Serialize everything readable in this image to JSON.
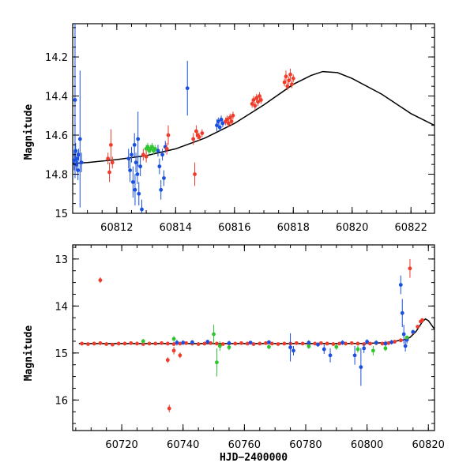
{
  "chart_data": [
    {
      "type": "scatter",
      "title": "",
      "xlabel": "",
      "ylabel": "Magnitude",
      "xlim": [
        60810.5,
        60822.8
      ],
      "ylim": [
        15.0,
        14.03
      ],
      "y_inverted": true,
      "x_ticks": [
        60812,
        60814,
        60816,
        60818,
        60820,
        60822
      ],
      "y_ticks": [
        14.2,
        14.4,
        14.6,
        14.8,
        15
      ],
      "colors": {
        "blue": "#1a4fe0",
        "red": "#f03a2a",
        "green": "#2ec52e",
        "model": "#000000"
      },
      "model_curve": {
        "name": "",
        "points": [
          [
            60810.5,
            14.745
          ],
          [
            60811,
            14.74
          ],
          [
            60812,
            14.725
          ],
          [
            60813,
            14.705
          ],
          [
            60814,
            14.67
          ],
          [
            60815,
            14.615
          ],
          [
            60816,
            14.54
          ],
          [
            60817,
            14.445
          ],
          [
            60818,
            14.34
          ],
          [
            60818.6,
            14.295
          ],
          [
            60819,
            14.275
          ],
          [
            60819.5,
            14.28
          ],
          [
            60820,
            14.31
          ],
          [
            60821,
            14.39
          ],
          [
            60822,
            14.49
          ],
          [
            60822.8,
            14.55
          ]
        ]
      },
      "series": [
        {
          "color": "blue",
          "points": [
            [
              60810.55,
              14.73,
              0.05
            ],
            [
              60810.6,
              14.68,
              0.04
            ],
            [
              60810.62,
              14.75,
              0.03
            ],
            [
              60810.65,
              14.72,
              0.04
            ],
            [
              60810.68,
              14.78,
              0.05
            ],
            [
              60810.7,
              14.7,
              0.03
            ],
            [
              60810.75,
              14.62,
              0.35
            ],
            [
              60810.58,
              14.42,
              0.4
            ],
            [
              60810.8,
              14.74,
              0.05
            ],
            [
              60812.4,
              14.72,
              0.05
            ],
            [
              60812.45,
              14.78,
              0.06
            ],
            [
              60812.5,
              14.7,
              0.04
            ],
            [
              60812.55,
              14.84,
              0.08
            ],
            [
              60812.6,
              14.65,
              0.06
            ],
            [
              60812.62,
              14.88,
              0.08
            ],
            [
              60812.65,
              14.74,
              0.05
            ],
            [
              60812.7,
              14.8,
              0.05
            ],
            [
              60812.72,
              14.62,
              0.14
            ],
            [
              60812.75,
              14.9,
              0.06
            ],
            [
              60812.8,
              14.76,
              0.05
            ],
            [
              60812.85,
              14.98,
              0.05
            ],
            [
              60813.4,
              14.68,
              0.03
            ],
            [
              60813.45,
              14.76,
              0.04
            ],
            [
              60813.5,
              14.88,
              0.05
            ],
            [
              60813.55,
              14.7,
              0.03
            ],
            [
              60813.6,
              14.82,
              0.04
            ],
            [
              60813.65,
              14.66,
              0.03
            ],
            [
              60814.4,
              14.36,
              0.14
            ],
            [
              60815.4,
              14.55,
              0.03
            ],
            [
              60815.45,
              14.53,
              0.02
            ],
            [
              60815.5,
              14.56,
              0.02
            ],
            [
              60815.55,
              14.52,
              0.02
            ],
            [
              60815.6,
              14.54,
              0.02
            ]
          ]
        },
        {
          "color": "green",
          "points": [
            [
              60813.0,
              14.67,
              0.02
            ],
            [
              60813.05,
              14.66,
              0.02
            ],
            [
              60813.1,
              14.68,
              0.02
            ],
            [
              60813.15,
              14.67,
              0.02
            ],
            [
              60813.2,
              14.66,
              0.02
            ],
            [
              60813.25,
              14.68,
              0.02
            ],
            [
              60813.3,
              14.67,
              0.02
            ]
          ]
        },
        {
          "color": "red",
          "points": [
            [
              60811.7,
              14.72,
              0.03
            ],
            [
              60811.75,
              14.79,
              0.05
            ],
            [
              60811.8,
              14.65,
              0.08
            ],
            [
              60811.85,
              14.74,
              0.03
            ],
            [
              60812.9,
              14.7,
              0.03
            ],
            [
              60813.0,
              14.71,
              0.03
            ],
            [
              60813.7,
              14.67,
              0.03
            ],
            [
              60813.75,
              14.6,
              0.05
            ],
            [
              60814.6,
              14.62,
              0.03
            ],
            [
              60814.65,
              14.8,
              0.06
            ],
            [
              60814.7,
              14.58,
              0.03
            ],
            [
              60814.75,
              14.6,
              0.02
            ],
            [
              60814.8,
              14.61,
              0.02
            ],
            [
              60814.9,
              14.59,
              0.02
            ],
            [
              60815.7,
              14.53,
              0.02
            ],
            [
              60815.75,
              14.52,
              0.02
            ],
            [
              60815.8,
              14.54,
              0.02
            ],
            [
              60815.85,
              14.51,
              0.02
            ],
            [
              60815.9,
              14.53,
              0.02
            ],
            [
              60815.95,
              14.5,
              0.02
            ],
            [
              60816.6,
              14.44,
              0.02
            ],
            [
              60816.65,
              14.42,
              0.02
            ],
            [
              60816.7,
              14.45,
              0.02
            ],
            [
              60816.75,
              14.41,
              0.02
            ],
            [
              60816.8,
              14.43,
              0.02
            ],
            [
              60816.85,
              14.4,
              0.02
            ],
            [
              60816.9,
              14.42,
              0.02
            ],
            [
              60817.7,
              14.33,
              0.02
            ],
            [
              60817.75,
              14.3,
              0.03
            ],
            [
              60817.8,
              14.35,
              0.02
            ],
            [
              60817.85,
              14.32,
              0.02
            ],
            [
              60817.9,
              14.29,
              0.03
            ],
            [
              60817.95,
              14.34,
              0.02
            ],
            [
              60818.0,
              14.31,
              0.02
            ]
          ]
        }
      ]
    },
    {
      "type": "scatter",
      "title": "",
      "xlabel": "HJD−2400000",
      "ylabel": "Magnitude",
      "xlim": [
        60704,
        60822
      ],
      "ylim": [
        16.65,
        12.7
      ],
      "y_inverted": true,
      "x_ticks": [
        60720,
        60740,
        60760,
        60780,
        60800,
        60820
      ],
      "y_ticks": [
        13,
        14,
        15,
        16
      ],
      "colors": {
        "blue": "#1a4fe0",
        "red": "#f03a2a",
        "green": "#2ec52e",
        "model": "#000000"
      },
      "model_curve": {
        "name": "",
        "points": [
          [
            60706,
            14.8
          ],
          [
            60790,
            14.8
          ],
          [
            60800,
            14.795
          ],
          [
            60806,
            14.78
          ],
          [
            60810,
            14.74
          ],
          [
            60812,
            14.72
          ],
          [
            60814,
            14.67
          ],
          [
            60816,
            14.54
          ],
          [
            60818,
            14.34
          ],
          [
            60819,
            14.275
          ],
          [
            60820,
            14.31
          ],
          [
            60822,
            14.49
          ]
        ]
      },
      "series": [
        {
          "color": "red",
          "points": [
            [
              60707,
              14.8,
              0.03
            ],
            [
              60709,
              14.81,
              0.03
            ],
            [
              60711,
              14.8,
              0.03
            ],
            [
              60713,
              14.79,
              0.04
            ],
            [
              60715,
              14.81,
              0.03
            ],
            [
              60717,
              14.82,
              0.03
            ],
            [
              60719,
              14.8,
              0.03
            ],
            [
              60721,
              14.8,
              0.03
            ],
            [
              60723,
              14.79,
              0.03
            ],
            [
              60725,
              14.8,
              0.03
            ],
            [
              60727,
              14.81,
              0.03
            ],
            [
              60729,
              14.8,
              0.03
            ],
            [
              60731,
              14.8,
              0.03
            ],
            [
              60733,
              14.79,
              0.03
            ],
            [
              60735,
              14.8,
              0.03
            ],
            [
              60737,
              14.81,
              0.03
            ],
            [
              60739,
              14.8,
              0.03
            ],
            [
              60741,
              14.79,
              0.03
            ],
            [
              60743,
              14.8,
              0.03
            ],
            [
              60745,
              14.81,
              0.03
            ],
            [
              60747,
              14.8,
              0.03
            ],
            [
              60749,
              14.79,
              0.03
            ],
            [
              60751,
              14.8,
              0.03
            ],
            [
              60753,
              14.81,
              0.03
            ],
            [
              60755,
              14.8,
              0.03
            ],
            [
              60757,
              14.8,
              0.03
            ],
            [
              60759,
              14.79,
              0.03
            ],
            [
              60761,
              14.8,
              0.03
            ],
            [
              60763,
              14.81,
              0.03
            ],
            [
              60765,
              14.8,
              0.03
            ],
            [
              60767,
              14.79,
              0.03
            ],
            [
              60769,
              14.8,
              0.03
            ],
            [
              60771,
              14.81,
              0.03
            ],
            [
              60773,
              14.8,
              0.03
            ],
            [
              60775,
              14.8,
              0.03
            ],
            [
              60777,
              14.79,
              0.03
            ],
            [
              60779,
              14.8,
              0.03
            ],
            [
              60781,
              14.81,
              0.03
            ],
            [
              60783,
              14.8,
              0.03
            ],
            [
              60785,
              14.79,
              0.03
            ],
            [
              60787,
              14.8,
              0.03
            ],
            [
              60789,
              14.81,
              0.03
            ],
            [
              60791,
              14.8,
              0.03
            ],
            [
              60793,
              14.8,
              0.03
            ],
            [
              60795,
              14.79,
              0.03
            ],
            [
              60797,
              14.8,
              0.03
            ],
            [
              60799,
              14.81,
              0.03
            ],
            [
              60801,
              14.8,
              0.03
            ],
            [
              60803,
              14.79,
              0.03
            ],
            [
              60805,
              14.8,
              0.03
            ],
            [
              60807,
              14.79,
              0.03
            ],
            [
              60809,
              14.76,
              0.03
            ],
            [
              60811,
              14.73,
              0.04
            ],
            [
              60813,
              14.7,
              0.04
            ],
            [
              60815,
              14.56,
              0.03
            ],
            [
              60816.5,
              14.44,
              0.03
            ],
            [
              60817.5,
              14.33,
              0.04
            ],
            [
              60818,
              14.3,
              0.04
            ],
            [
              60713,
              13.45,
              0.06
            ],
            [
              60735,
              15.15,
              0.06
            ],
            [
              60735.5,
              16.18,
              0.08
            ],
            [
              60737,
              14.95,
              0.08
            ],
            [
              60739,
              15.05,
              0.06
            ],
            [
              60814,
              13.2,
              0.2
            ]
          ]
        },
        {
          "color": "blue",
          "points": [
            [
              60738,
              14.78,
              0.06
            ],
            [
              60740,
              14.78,
              0.05
            ],
            [
              60743,
              14.77,
              0.04
            ],
            [
              60748,
              14.76,
              0.04
            ],
            [
              60755,
              14.79,
              0.05
            ],
            [
              60762,
              14.78,
              0.04
            ],
            [
              60768,
              14.77,
              0.04
            ],
            [
              60775,
              14.88,
              0.3
            ],
            [
              60776,
              14.95,
              0.1
            ],
            [
              60781,
              14.78,
              0.05
            ],
            [
              60784,
              14.82,
              0.05
            ],
            [
              60786,
              14.92,
              0.1
            ],
            [
              60788,
              15.05,
              0.15
            ],
            [
              60792,
              14.78,
              0.05
            ],
            [
              60796,
              15.05,
              0.2
            ],
            [
              60798,
              15.3,
              0.4
            ],
            [
              60799,
              14.9,
              0.1
            ],
            [
              60800,
              14.76,
              0.05
            ],
            [
              60803,
              14.78,
              0.05
            ],
            [
              60806,
              14.8,
              0.06
            ],
            [
              60808,
              14.77,
              0.05
            ],
            [
              60811,
              13.55,
              0.2
            ],
            [
              60811.5,
              14.15,
              0.3
            ],
            [
              60812,
              14.6,
              0.2
            ],
            [
              60812.5,
              14.85,
              0.12
            ],
            [
              60813,
              14.72,
              0.08
            ],
            [
              60815,
              14.55,
              0.04
            ]
          ]
        },
        {
          "color": "green",
          "points": [
            [
              60727,
              14.75,
              0.05
            ],
            [
              60737,
              14.7,
              0.06
            ],
            [
              60750,
              14.6,
              0.2
            ],
            [
              60751,
              15.2,
              0.3
            ],
            [
              60752,
              14.85,
              0.1
            ],
            [
              60755,
              14.88,
              0.06
            ],
            [
              60768,
              14.87,
              0.05
            ],
            [
              60781,
              14.86,
              0.05
            ],
            [
              60790,
              14.87,
              0.06
            ],
            [
              60797,
              14.92,
              0.07
            ],
            [
              60802,
              14.95,
              0.1
            ],
            [
              60806,
              14.9,
              0.06
            ],
            [
              60813,
              14.67,
              0.03
            ]
          ]
        }
      ]
    }
  ]
}
